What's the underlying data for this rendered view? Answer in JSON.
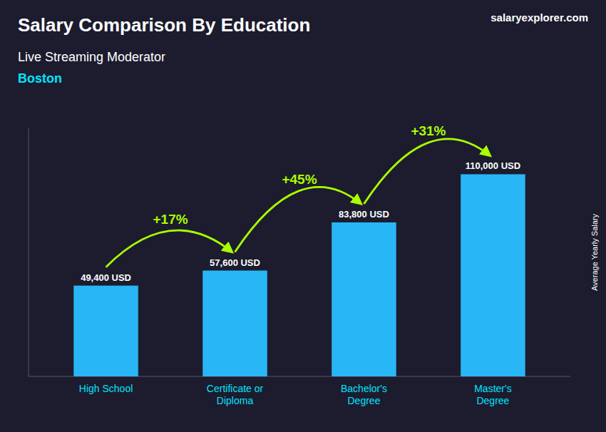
{
  "chart_data": {
    "type": "bar",
    "title": "Salary Comparison By Education",
    "subtitle": "Live Streaming Moderator",
    "city": "Boston",
    "brand": "salaryexplorer.com",
    "ylabel": "Average Yearly Salary",
    "categories": [
      "High School",
      "Certificate or\nDiploma",
      "Bachelor's\nDegree",
      "Master's\nDegree"
    ],
    "values": [
      49400,
      57600,
      83800,
      110000
    ],
    "value_labels": [
      "49,400 USD",
      "57,600 USD",
      "83,800 USD",
      "110,000 USD"
    ],
    "annotations": [
      "+17%",
      "+45%",
      "+31%"
    ],
    "color": "#29b6f6",
    "ylim": [
      0,
      135000
    ],
    "yticks": [],
    "grid": false,
    "data_labels": true,
    "tick_labels": "x"
  }
}
